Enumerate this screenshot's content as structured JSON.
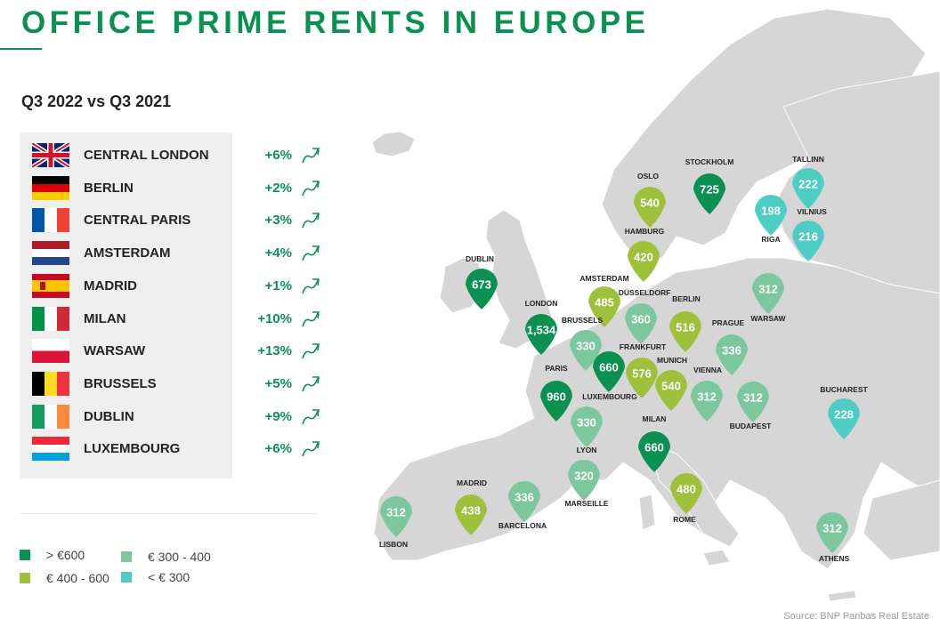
{
  "title": "OFFICE PRIME RENTS IN EUROPE",
  "subtitle": "Q3 2022 vs Q3 2021",
  "colors": {
    "dark_green": "#0a9152",
    "lime": "#9ec03a",
    "mint": "#7cc79e",
    "teal": "#4ecdc4",
    "change_green": "#0a9152"
  },
  "rows": [
    {
      "flag": "uk",
      "city": "CENTRAL LONDON",
      "change": "+6%"
    },
    {
      "flag": "germany",
      "city": "BERLIN",
      "change": "+2%"
    },
    {
      "flag": "france",
      "city": "CENTRAL PARIS",
      "change": "+3%"
    },
    {
      "flag": "netherlands",
      "city": "AMSTERDAM",
      "change": "+4%"
    },
    {
      "flag": "spain",
      "city": "MADRID",
      "change": "+1%"
    },
    {
      "flag": "italy",
      "city": "MILAN",
      "change": "+10%"
    },
    {
      "flag": "poland",
      "city": "WARSAW",
      "change": "+13%"
    },
    {
      "flag": "belgium",
      "city": "BRUSSELS",
      "change": "+5%"
    },
    {
      "flag": "ireland",
      "city": "DUBLIN",
      "change": "+9%"
    },
    {
      "flag": "luxembourg",
      "city": "LUXEMBOURG",
      "change": "+6%"
    }
  ],
  "legend": [
    {
      "color": "#0a9152",
      "label": "> €600"
    },
    {
      "color": "#9ec03a",
      "label": "€ 400 - 600"
    },
    {
      "color": "#7cc79e",
      "label": "€ 300 - 400"
    },
    {
      "color": "#4ecdc4",
      "label": "< € 300"
    }
  ],
  "pins": [
    {
      "city": "STOCKHOLM",
      "value": "725",
      "band": "dark_green",
      "label_pos": "above"
    },
    {
      "city": "OSLO",
      "value": "540",
      "band": "lime",
      "label_pos": "above"
    },
    {
      "city": "TALLINN",
      "value": "222",
      "band": "teal",
      "label_pos": "above"
    },
    {
      "city": "RIGA",
      "value": "198",
      "band": "teal",
      "label_pos": "below"
    },
    {
      "city": "VILNIUS",
      "value": "216",
      "band": "teal",
      "label_pos": "above"
    },
    {
      "city": "HAMBURG",
      "value": "420",
      "band": "lime",
      "label_pos": "above"
    },
    {
      "city": "DUBLIN",
      "value": "673",
      "band": "dark_green",
      "label_pos": "above"
    },
    {
      "city": "AMSTERDAM",
      "value": "485",
      "band": "lime",
      "label_pos": "above"
    },
    {
      "city": "DÜSSELDORF",
      "value": "360",
      "band": "mint",
      "label_pos": "above"
    },
    {
      "city": "BERLIN",
      "value": "516",
      "band": "lime",
      "label_pos": "above"
    },
    {
      "city": "WARSAW",
      "value": "312",
      "band": "mint",
      "label_pos": "below"
    },
    {
      "city": "LONDON",
      "value": "1,534",
      "band": "dark_green",
      "label_pos": "above"
    },
    {
      "city": "BRUSSELS",
      "value": "330",
      "band": "mint",
      "label_pos": "above"
    },
    {
      "city": "PRAGUE",
      "value": "336",
      "band": "mint",
      "label_pos": "above"
    },
    {
      "city": "FRANKFURT",
      "value": "576",
      "band": "lime",
      "label_pos": "above"
    },
    {
      "city": "MUNICH",
      "value": "540",
      "band": "lime",
      "label_pos": "above"
    },
    {
      "city": "LUXEMBOURG",
      "value": "660",
      "band": "dark_green",
      "label_pos": "below"
    },
    {
      "city": "PARIS",
      "value": "960",
      "band": "dark_green",
      "label_pos": "above"
    },
    {
      "city": "VIENNA",
      "value": "312",
      "band": "mint",
      "label_pos": "above"
    },
    {
      "city": "BUDAPEST",
      "value": "312",
      "band": "mint",
      "label_pos": "below"
    },
    {
      "city": "BUCHAREST",
      "value": "228",
      "band": "teal",
      "label_pos": "above"
    },
    {
      "city": "LYON",
      "value": "330",
      "band": "mint",
      "label_pos": "below"
    },
    {
      "city": "MILAN",
      "value": "660",
      "band": "dark_green",
      "label_pos": "above"
    },
    {
      "city": "MARSEILLE",
      "value": "320",
      "band": "mint",
      "label_pos": "below"
    },
    {
      "city": "MADRID",
      "value": "438",
      "band": "lime",
      "label_pos": "above"
    },
    {
      "city": "BARCELONA",
      "value": "336",
      "band": "mint",
      "label_pos": "below"
    },
    {
      "city": "ROME",
      "value": "480",
      "band": "lime",
      "label_pos": "below"
    },
    {
      "city": "LISBON",
      "value": "312",
      "band": "mint",
      "label_pos": "below"
    },
    {
      "city": "ATHENS",
      "value": "312",
      "band": "mint",
      "label_pos": "below"
    }
  ],
  "source": "Source: BNP Paribas Real Estate"
}
